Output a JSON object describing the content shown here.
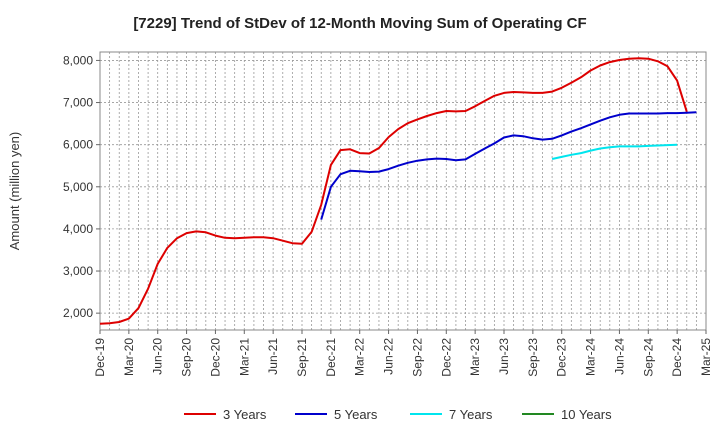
{
  "chart_data": {
    "type": "line",
    "title": "[7229]  Trend of StDev of 12-Month Moving Sum of Operating CF",
    "xlabel": "",
    "ylabel": "Amount (million yen)",
    "ylim": [
      1600,
      8200
    ],
    "yticks": [
      2000,
      3000,
      4000,
      5000,
      6000,
      7000,
      8000
    ],
    "ytick_labels": [
      "2,000",
      "3,000",
      "4,000",
      "5,000",
      "6,000",
      "7,000",
      "8,000"
    ],
    "xtick_labels": [
      "Dec-19",
      "Mar-20",
      "Jun-20",
      "Sep-20",
      "Dec-20",
      "Mar-21",
      "Jun-21",
      "Sep-21",
      "Dec-21",
      "Mar-22",
      "Jun-22",
      "Sep-22",
      "Dec-22",
      "Mar-23",
      "Jun-23",
      "Sep-23",
      "Dec-23",
      "Mar-24",
      "Jun-24",
      "Sep-24",
      "Dec-24",
      "Mar-25"
    ],
    "x_start": "Dec-19",
    "x_end": "Mar-25",
    "grid": true,
    "legend_position": "bottom",
    "series": [
      {
        "name": "3 Years",
        "color": "#dd0000",
        "start": "Dec-19",
        "values": [
          1750,
          1760,
          1790,
          1870,
          2120,
          2580,
          3170,
          3550,
          3780,
          3900,
          3940,
          3920,
          3840,
          3790,
          3780,
          3790,
          3800,
          3800,
          3780,
          3720,
          3660,
          3650,
          3930,
          4570,
          5520,
          5870,
          5890,
          5800,
          5790,
          5920,
          6180,
          6370,
          6510,
          6600,
          6680,
          6750,
          6800,
          6790,
          6800,
          6910,
          7040,
          7160,
          7230,
          7250,
          7240,
          7230,
          7230,
          7260,
          7350,
          7470,
          7600,
          7760,
          7880,
          7960,
          8010,
          8040,
          8050,
          8040,
          7980,
          7860,
          7520,
          6780
        ]
      },
      {
        "name": "5 Years",
        "color": "#0000cc",
        "start": "Nov-21",
        "values": [
          4220,
          5000,
          5300,
          5380,
          5370,
          5350,
          5360,
          5420,
          5500,
          5570,
          5620,
          5650,
          5670,
          5660,
          5630,
          5650,
          5780,
          5910,
          6030,
          6170,
          6220,
          6200,
          6150,
          6120,
          6140,
          6220,
          6310,
          6390,
          6480,
          6570,
          6650,
          6710,
          6740,
          6740,
          6740,
          6740,
          6750,
          6750,
          6760,
          6770
        ]
      },
      {
        "name": "7 Years",
        "color": "#00e5ee",
        "start": "Nov-23",
        "values": [
          5660,
          5710,
          5760,
          5800,
          5860,
          5910,
          5940,
          5960,
          5960,
          5960,
          5970,
          5980,
          5990,
          6000
        ]
      },
      {
        "name": "10 Years",
        "color": "#228822",
        "start": "Dec-24",
        "values": []
      }
    ]
  }
}
